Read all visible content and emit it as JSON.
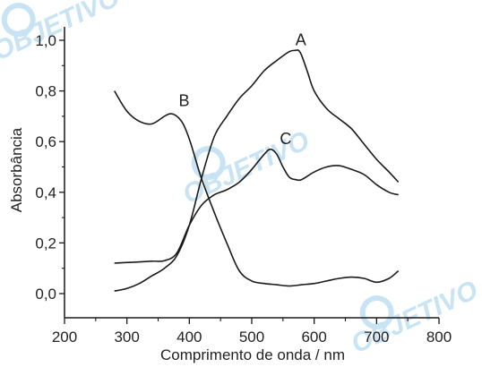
{
  "watermark": {
    "text": "OBJETIVO",
    "color": "#bfe0f3"
  },
  "chart_data": {
    "type": "line",
    "xlabel": "Comprimento de onda / nm",
    "ylabel": "Absorbância",
    "xlim": [
      200,
      800
    ],
    "ylim": [
      -0.09,
      1.08
    ],
    "xticks": [
      200,
      300,
      400,
      500,
      600,
      700,
      800
    ],
    "xtick_labels": [
      "200",
      "300",
      "400",
      "500",
      "600",
      "700",
      "800"
    ],
    "yticks": [
      0.0,
      0.2,
      0.4,
      0.6,
      0.8,
      1.0
    ],
    "ytick_labels": [
      "0,0",
      "0,2",
      "0,4",
      "0,6",
      "0,8",
      "1,0"
    ],
    "grid": false,
    "line_color": "#1a1a1a",
    "series": [
      {
        "name": "A",
        "label_at": [
          570,
          0.98
        ],
        "x": [
          280,
          300,
          320,
          340,
          360,
          380,
          400,
          420,
          440,
          460,
          480,
          500,
          520,
          540,
          560,
          570,
          575,
          580,
          590,
          600,
          620,
          640,
          660,
          680,
          700,
          720,
          735
        ],
        "y": [
          0.01,
          0.02,
          0.04,
          0.07,
          0.1,
          0.15,
          0.27,
          0.46,
          0.62,
          0.7,
          0.77,
          0.82,
          0.88,
          0.92,
          0.955,
          0.96,
          0.96,
          0.94,
          0.87,
          0.8,
          0.73,
          0.69,
          0.65,
          0.59,
          0.53,
          0.48,
          0.44
        ]
      },
      {
        "name": "B",
        "label_at": [
          383,
          0.74
        ],
        "x": [
          280,
          300,
          320,
          340,
          360,
          370,
          380,
          390,
          400,
          410,
          420,
          440,
          460,
          480,
          500,
          520,
          540,
          560,
          580,
          600,
          620,
          640,
          660,
          680,
          700,
          720,
          735
        ],
        "y": [
          0.8,
          0.72,
          0.68,
          0.67,
          0.7,
          0.71,
          0.7,
          0.67,
          0.61,
          0.53,
          0.45,
          0.32,
          0.2,
          0.09,
          0.05,
          0.04,
          0.035,
          0.03,
          0.035,
          0.04,
          0.05,
          0.06,
          0.065,
          0.06,
          0.045,
          0.06,
          0.09
        ]
      },
      {
        "name": "C",
        "label_at": [
          545,
          0.59
        ],
        "x": [
          280,
          300,
          320,
          340,
          360,
          380,
          400,
          420,
          440,
          460,
          480,
          500,
          520,
          530,
          540,
          550,
          560,
          570,
          580,
          600,
          620,
          640,
          660,
          680,
          700,
          720,
          735
        ],
        "y": [
          0.12,
          0.123,
          0.125,
          0.128,
          0.13,
          0.16,
          0.27,
          0.35,
          0.39,
          0.41,
          0.44,
          0.49,
          0.55,
          0.57,
          0.55,
          0.5,
          0.46,
          0.45,
          0.45,
          0.48,
          0.5,
          0.505,
          0.49,
          0.47,
          0.43,
          0.4,
          0.39
        ]
      }
    ]
  }
}
